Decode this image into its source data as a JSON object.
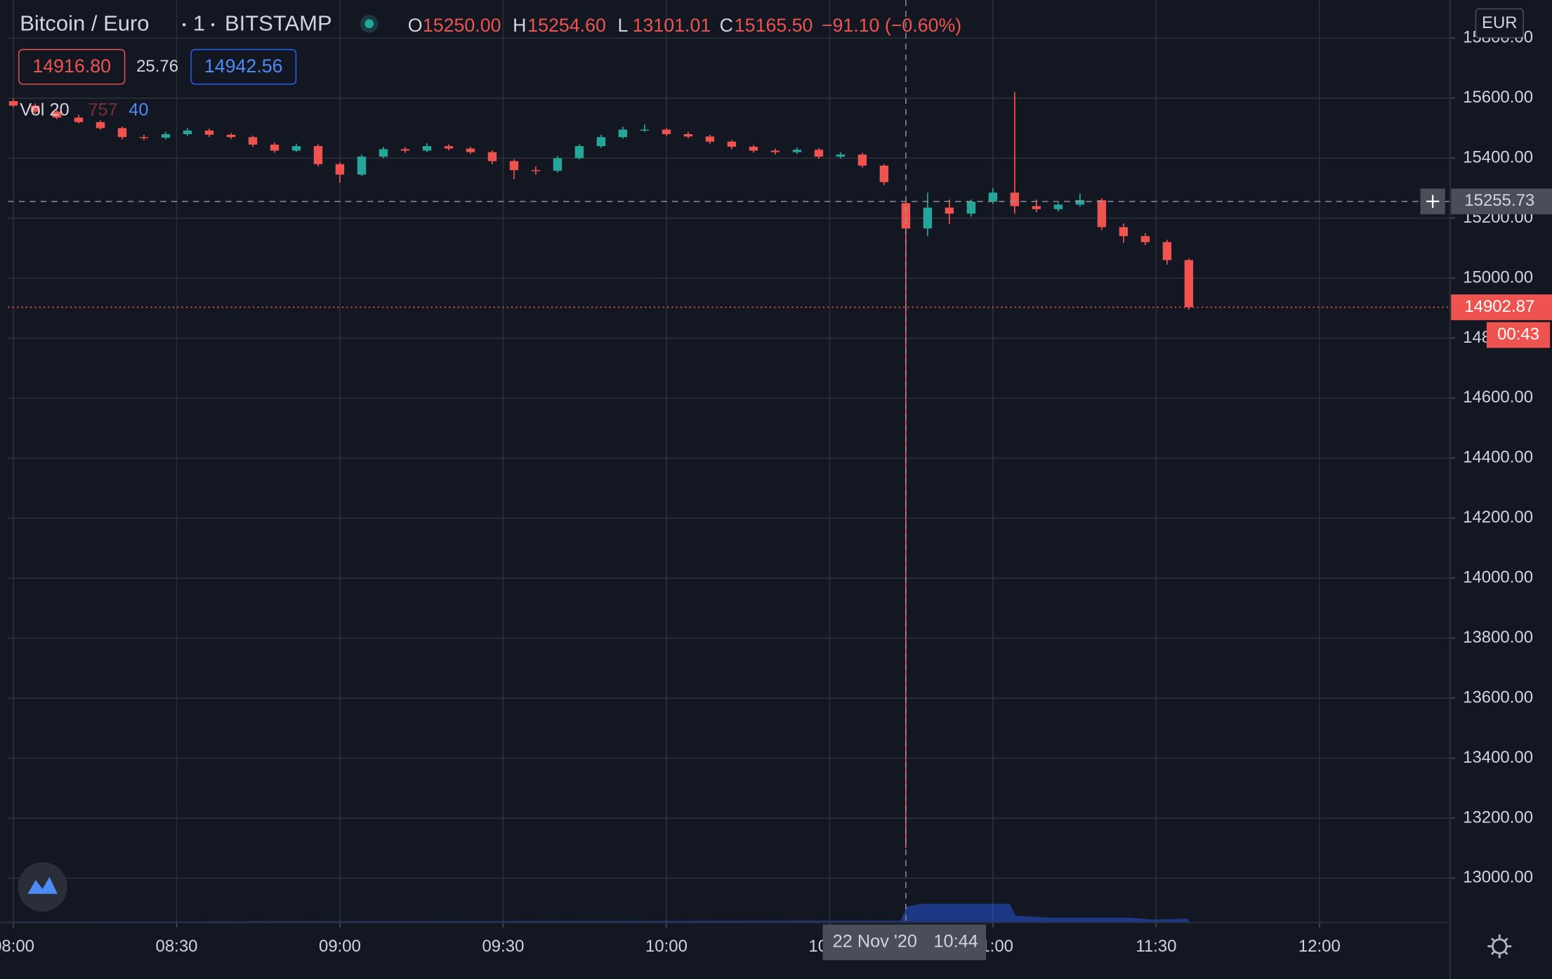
{
  "chart_data": {
    "type": "candlestick",
    "title": "Bitcoin / Euro",
    "interval": "1",
    "exchange": "BITSTAMP",
    "currency": "EUR",
    "legend": [
      {
        "key": "O",
        "value": "15250.00"
      },
      {
        "key": "H",
        "value": "15254.60"
      },
      {
        "key": "L",
        "value": "13101.01"
      },
      {
        "key": "C",
        "value": "15165.50"
      }
    ],
    "change": "−91.10 (−0.60%)",
    "bid": "14916.80",
    "spread": "25.76",
    "ask": "14942.56",
    "indicator": {
      "name": "Vol 20",
      "values": [
        "757",
        "40"
      ]
    },
    "up_color": "#26a69a",
    "down_color": "#ef5350",
    "grid": true,
    "x": [
      "08:00",
      "08:04",
      "08:08",
      "08:12",
      "08:16",
      "08:20",
      "08:24",
      "08:28",
      "08:32",
      "08:36",
      "08:40",
      "08:44",
      "08:48",
      "08:52",
      "08:56",
      "09:00",
      "09:04",
      "09:08",
      "09:12",
      "09:16",
      "09:20",
      "09:24",
      "09:28",
      "09:32",
      "09:36",
      "09:40",
      "09:44",
      "09:48",
      "09:52",
      "09:56",
      "10:00",
      "10:04",
      "10:08",
      "10:12",
      "10:16",
      "10:20",
      "10:24",
      "10:28",
      "10:32",
      "10:36",
      "10:40",
      "10:44",
      "10:48",
      "10:52",
      "10:56",
      "11:00",
      "11:04",
      "11:08",
      "11:12",
      "11:16",
      "11:20",
      "11:24",
      "11:28",
      "11:32",
      "11:36"
    ],
    "open": [
      15590,
      15575,
      15555,
      15535,
      15520,
      15500,
      15470,
      15468,
      15480,
      15492,
      15478,
      15470,
      15445,
      15425,
      15440,
      15380,
      15345,
      15405,
      15430,
      15425,
      15440,
      15432,
      15420,
      15390,
      15360,
      15358,
      15400,
      15440,
      15470,
      15495,
      15495,
      15480,
      15472,
      15455,
      15438,
      15425,
      15420,
      15428,
      15405,
      15412,
      15375,
      15250,
      15165.5,
      15235,
      15215,
      15255,
      15285,
      15240,
      15230,
      15245,
      15260,
      15170,
      15140,
      15120,
      15060
    ],
    "high": [
      15598,
      15582,
      15560,
      15545,
      15526,
      15505,
      15478,
      15488,
      15500,
      15498,
      15484,
      15475,
      15452,
      15448,
      15446,
      15386,
      15412,
      15438,
      15436,
      15450,
      15446,
      15438,
      15426,
      15396,
      15372,
      15408,
      15446,
      15478,
      15505,
      15512,
      15500,
      15488,
      15478,
      15460,
      15444,
      15432,
      15436,
      15434,
      15420,
      15418,
      15380,
      15254.6,
      15285,
      15262,
      15262,
      15300,
      15620,
      15262,
      15252,
      15282,
      15266,
      15182,
      15150,
      15128,
      15065
    ],
    "low": [
      15570,
      15548,
      15530,
      15515,
      15495,
      15462,
      15460,
      15462,
      15474,
      15470,
      15464,
      15438,
      15418,
      15420,
      15372,
      15318,
      15340,
      15400,
      15418,
      15420,
      15426,
      15414,
      15380,
      15330,
      15345,
      15352,
      15396,
      15434,
      15465,
      15488,
      15474,
      15466,
      15448,
      15430,
      15418,
      15412,
      15414,
      15398,
      15398,
      15368,
      15310,
      13101.01,
      15140,
      15180,
      15205,
      15248,
      15215,
      15220,
      15222,
      15238,
      15160,
      15118,
      15110,
      15045,
      14895
    ],
    "close": [
      15575,
      15555,
      15535,
      15520,
      15500,
      15470,
      15468,
      15480,
      15492,
      15478,
      15470,
      15445,
      15425,
      15440,
      15380,
      15345,
      15405,
      15430,
      15425,
      15440,
      15432,
      15420,
      15390,
      15360,
      15358,
      15400,
      15440,
      15470,
      15495,
      15495,
      15480,
      15472,
      15455,
      15438,
      15425,
      15420,
      15428,
      15405,
      15412,
      15375,
      15320,
      15165.5,
      15235,
      15215,
      15255,
      15285,
      15240,
      15230,
      15245,
      15260,
      15170,
      15140,
      15120,
      15060,
      14902.87
    ],
    "xlim": [
      "07:59",
      "12:24"
    ],
    "xticks": [
      "08:00",
      "08:30",
      "09:00",
      "09:30",
      "10:00",
      "10:30",
      "11:00",
      "11:30",
      "12:00"
    ],
    "ylim": [
      12852,
      15927
    ],
    "yticks": [
      {
        "value": 13000,
        "label": "13000.00"
      },
      {
        "value": 13200,
        "label": "13200.00"
      },
      {
        "value": 13400,
        "label": "13400.00"
      },
      {
        "value": 13600,
        "label": "13600.00"
      },
      {
        "value": 13800,
        "label": "13800.00"
      },
      {
        "value": 14000,
        "label": "14000.00"
      },
      {
        "value": 14200,
        "label": "14200.00"
      },
      {
        "value": 14400,
        "label": "14400.00"
      },
      {
        "value": 14600,
        "label": "14600.00"
      },
      {
        "value": 14800,
        "label": "14800.00"
      },
      {
        "value": 15000,
        "label": "15000.00"
      },
      {
        "value": 15200,
        "label": "15200.00"
      },
      {
        "value": 15400,
        "label": "15400.00"
      },
      {
        "value": 15600,
        "label": "15600.00"
      },
      {
        "value": 15800,
        "label": "15800.00"
      }
    ],
    "crosshair": {
      "price": {
        "value": 15255.73,
        "label": "15255.73"
      },
      "date": "22 Nov '20",
      "time": "10:44"
    },
    "last_price": {
      "value": 14902.87,
      "label": "14902.87"
    },
    "countdown": "00:43"
  }
}
